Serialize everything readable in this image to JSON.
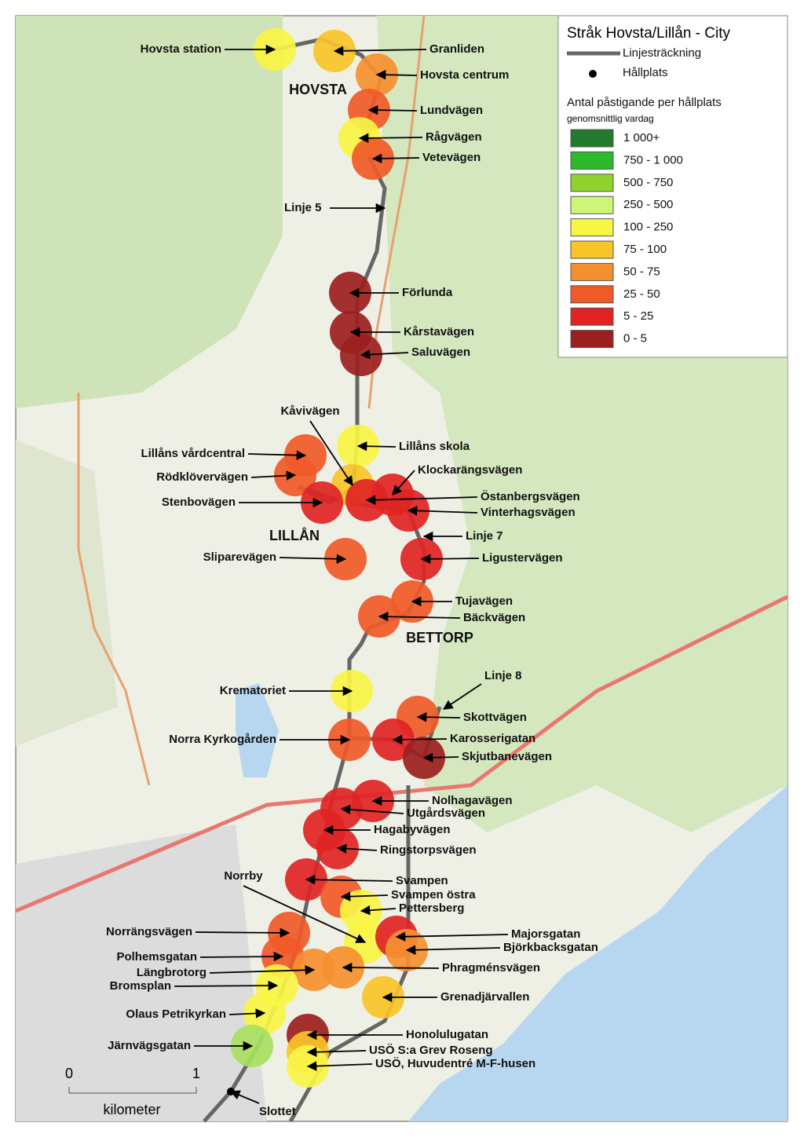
{
  "title": "Stråk Hovsta/Lillån - City",
  "legend": {
    "route": "Linjesträckning",
    "stop": "Hållplats",
    "heading": "Antal påstigande per hållplats",
    "subheading": "genomsnittlig vardag",
    "classes": [
      {
        "label": "1 000+",
        "color": "#237a2e"
      },
      {
        "label": "750 - 1 000",
        "color": "#2eb82e"
      },
      {
        "label": "500 - 750",
        "color": "#8fd42e"
      },
      {
        "label": "250 - 500",
        "color": "#cdf57a"
      },
      {
        "label": "100 - 250",
        "color": "#f8f545"
      },
      {
        "label": "75 - 100",
        "color": "#f8c428"
      },
      {
        "label": "50 - 75",
        "color": "#f59030"
      },
      {
        "label": "25 - 50",
        "color": "#f05a28"
      },
      {
        "label": "5 - 25",
        "color": "#e02424"
      },
      {
        "label": "0 - 5",
        "color": "#9c1f1f"
      }
    ]
  },
  "places": [
    "HOVSTA",
    "LILLÅN",
    "BETTORP"
  ],
  "lines": [
    "Linje 5",
    "Linje 7",
    "Linje 8"
  ],
  "stops": [
    {
      "label": "Hovsta station",
      "color": "#f8f545"
    },
    {
      "label": "Granliden",
      "color": "#f8c428"
    },
    {
      "label": "Hovsta centrum",
      "color": "#f59030"
    },
    {
      "label": "Lundvägen",
      "color": "#f05a28"
    },
    {
      "label": "Rågvägen",
      "color": "#f8f545"
    },
    {
      "label": "Vetevägen",
      "color": "#f05a28"
    },
    {
      "label": "Förlunda",
      "color": "#9c1f1f"
    },
    {
      "label": "Kårstavägen",
      "color": "#9c1f1f"
    },
    {
      "label": "Saluvägen",
      "color": "#9c1f1f"
    },
    {
      "label": "Lillåns skola",
      "color": "#f8f545"
    },
    {
      "label": "Kåvivägen",
      "color": "#f8c428"
    },
    {
      "label": "Klockarängsvägen",
      "color": "#e02424"
    },
    {
      "label": "Lillåns vårdcentral",
      "color": "#f05a28"
    },
    {
      "label": "Rödklövervägen",
      "color": "#f05a28"
    },
    {
      "label": "Stenbovägen",
      "color": "#e02424"
    },
    {
      "label": "Östanbergsvägen",
      "color": "#e02424"
    },
    {
      "label": "Vinterhagsvägen",
      "color": "#e02424"
    },
    {
      "label": "Sliparevägen",
      "color": "#f05a28"
    },
    {
      "label": "Ligustervägen",
      "color": "#e02424"
    },
    {
      "label": "Tujavägen",
      "color": "#f05a28"
    },
    {
      "label": "Bäckvägen",
      "color": "#f05a28"
    },
    {
      "label": "Krematoriet",
      "color": "#f8f545"
    },
    {
      "label": "Skottvägen",
      "color": "#f05a28"
    },
    {
      "label": "Norra Kyrkogården",
      "color": "#f05a28"
    },
    {
      "label": "Karosserigatan",
      "color": "#e02424"
    },
    {
      "label": "Skjutbanevägen",
      "color": "#9c1f1f"
    },
    {
      "label": "Nolhagavägen",
      "color": "#e02424"
    },
    {
      "label": "Utgårdsvägen",
      "color": "#e02424"
    },
    {
      "label": "Hagabyvägen",
      "color": "#e02424"
    },
    {
      "label": "Ringstorpsvägen",
      "color": "#e02424"
    },
    {
      "label": "Svampen",
      "color": "#e02424"
    },
    {
      "label": "Svampen östra",
      "color": "#f05a28"
    },
    {
      "label": "Pettersberg",
      "color": "#f8f545"
    },
    {
      "label": "Norrby",
      "color": "#f8f545"
    },
    {
      "label": "Majorsgatan",
      "color": "#e02424"
    },
    {
      "label": "Björkbacksgatan",
      "color": "#f59030"
    },
    {
      "label": "Norrängsvägen",
      "color": "#f05a28"
    },
    {
      "label": "Polhemsgatan",
      "color": "#f05a28"
    },
    {
      "label": "Phragménsvägen",
      "color": "#f59030"
    },
    {
      "label": "Längbrotorg",
      "color": "#f59030"
    },
    {
      "label": "Bromsplan",
      "color": "#f8f545"
    },
    {
      "label": "Grenadjärvallen",
      "color": "#f8c428"
    },
    {
      "label": "Olaus Petrikyrkan",
      "color": "#f8f545"
    },
    {
      "label": "Honolulugatan",
      "color": "#9c1f1f"
    },
    {
      "label": "Järnvägsgatan",
      "color": "#a8e060"
    },
    {
      "label": "USÖ S:a Grev Roseng",
      "color": "#f8c428"
    },
    {
      "label": "USÖ, Huvudentré M-F-husen",
      "color": "#f8f545"
    },
    {
      "label": "Slottet",
      "color": "#000000"
    }
  ],
  "scale": {
    "start": "0",
    "end": "1",
    "unit": "kilometer"
  }
}
